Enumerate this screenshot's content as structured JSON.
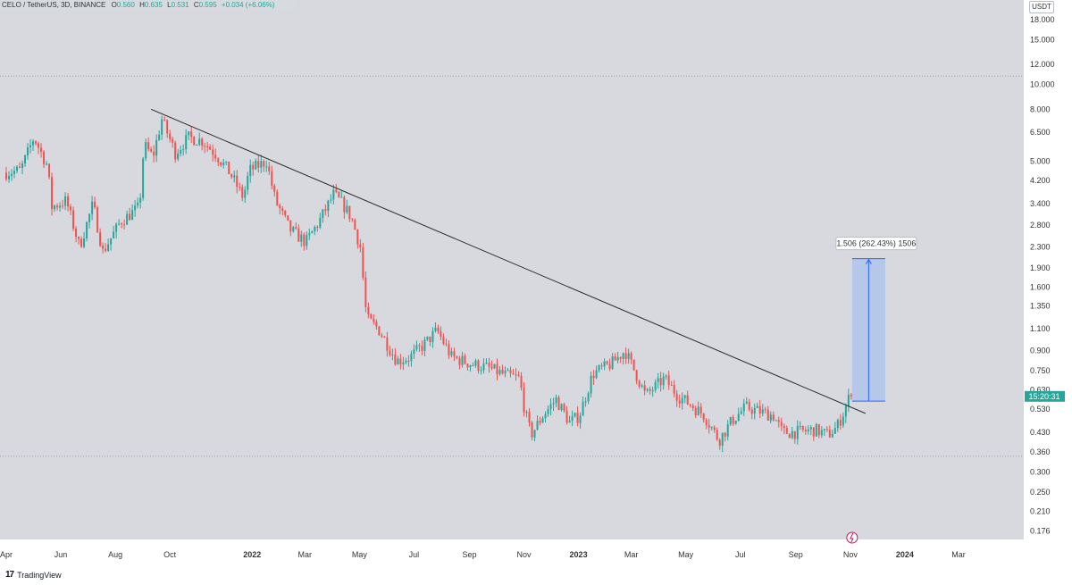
{
  "header": {
    "symbol": "CELO / TetherUS, 3D, BINANCE",
    "o_label": "O",
    "o_value": "0.560",
    "h_label": "H",
    "h_value": "0.635",
    "l_label": "L",
    "l_value": "0.531",
    "c_label": "C",
    "c_value": "0.595",
    "change": "+0.034 (+6.06%)"
  },
  "footer": {
    "logo": "17",
    "brand": "TradingView"
  },
  "colors": {
    "background": "#d7d9df",
    "up": "#26a69a",
    "down": "#ef5350",
    "trendline": "#2b2b2b",
    "measure_fill": "#a9c2ee",
    "measure_border": "#2962ff",
    "price_badge": "#26a69a"
  },
  "chart_data": {
    "type": "candlestick",
    "price_axis": {
      "unit": "USDT",
      "scale": "log",
      "ticks": [
        18.0,
        15.0,
        12.0,
        10.0,
        8.0,
        6.5,
        5.0,
        4.2,
        3.4,
        2.8,
        2.3,
        1.9,
        1.6,
        1.35,
        1.1,
        0.9,
        0.75,
        0.63,
        0.53,
        0.43,
        0.36,
        0.3,
        0.25,
        0.21,
        0.176
      ],
      "tick_labels": [
        "18.000",
        "15.000",
        "12.000",
        "10.000",
        "8.000",
        "6.500",
        "5.000",
        "4.200",
        "3.400",
        "2.800",
        "2.300",
        "1.900",
        "1.600",
        "1.350",
        "1.100",
        "0.900",
        "0.750",
        "0.630",
        "0.530",
        "0.430",
        "0.360",
        "0.300",
        "0.250",
        "0.210",
        "0.176"
      ],
      "range": [
        0.163,
        21.5
      ]
    },
    "time_axis": {
      "labels": [
        "Apr",
        "Jun",
        "Aug",
        "Oct",
        "2022",
        "Mar",
        "May",
        "Jul",
        "Sep",
        "Nov",
        "2023",
        "Mar",
        "May",
        "Jul",
        "Sep",
        "Nov",
        "2024",
        "Mar"
      ],
      "dates": [
        "2021-04-01",
        "2021-06-01",
        "2021-08-01",
        "2021-10-01",
        "2022-01-01",
        "2022-03-01",
        "2022-05-01",
        "2022-07-01",
        "2022-09-01",
        "2022-11-01",
        "2023-01-01",
        "2023-03-01",
        "2023-05-01",
        "2023-07-01",
        "2023-09-01",
        "2023-11-01",
        "2024-01-01",
        "2024-03-01"
      ],
      "range": [
        "2021-04-01",
        "2024-04-15"
      ]
    },
    "path": [
      [
        "2021-04-01",
        4.5
      ],
      [
        "2021-04-20",
        4.6
      ],
      [
        "2021-05-05",
        6.2
      ],
      [
        "2021-05-20",
        4.8
      ],
      [
        "2021-05-25",
        3.3
      ],
      [
        "2021-06-10",
        3.5
      ],
      [
        "2021-06-25",
        2.3
      ],
      [
        "2021-07-10",
        3.4
      ],
      [
        "2021-07-21",
        2.2
      ],
      [
        "2021-08-10",
        2.9
      ],
      [
        "2021-08-31",
        3.3
      ],
      [
        "2021-09-05",
        5.8
      ],
      [
        "2021-09-15",
        5.2
      ],
      [
        "2021-09-25",
        7.3
      ],
      [
        "2021-10-10",
        5.4
      ],
      [
        "2021-10-25",
        6.2
      ],
      [
        "2021-11-10",
        6.0
      ],
      [
        "2021-11-25",
        5.3
      ],
      [
        "2021-12-10",
        4.5
      ],
      [
        "2021-12-25",
        3.6
      ],
      [
        "2022-01-01",
        4.6
      ],
      [
        "2022-01-20",
        5.0
      ],
      [
        "2022-01-30",
        3.5
      ],
      [
        "2022-02-15",
        2.7
      ],
      [
        "2022-03-05",
        2.4
      ],
      [
        "2022-03-20",
        2.9
      ],
      [
        "2022-04-05",
        3.7
      ],
      [
        "2022-04-15",
        3.4
      ],
      [
        "2022-04-25",
        3.0
      ],
      [
        "2022-05-05",
        2.3
      ],
      [
        "2022-05-12",
        1.2
      ],
      [
        "2022-05-25",
        1.1
      ],
      [
        "2022-06-15",
        0.82
      ],
      [
        "2022-06-30",
        0.85
      ],
      [
        "2022-07-15",
        0.95
      ],
      [
        "2022-07-30",
        1.08
      ],
      [
        "2022-08-15",
        0.85
      ],
      [
        "2022-09-05",
        0.8
      ],
      [
        "2022-09-25",
        0.77
      ],
      [
        "2022-10-15",
        0.72
      ],
      [
        "2022-10-30",
        0.7
      ],
      [
        "2022-11-05",
        0.52
      ],
      [
        "2022-11-12",
        0.42
      ],
      [
        "2022-11-25",
        0.5
      ],
      [
        "2022-12-10",
        0.58
      ],
      [
        "2022-12-25",
        0.47
      ],
      [
        "2023-01-05",
        0.5
      ],
      [
        "2023-01-20",
        0.73
      ],
      [
        "2023-02-10",
        0.8
      ],
      [
        "2023-02-25",
        0.9
      ],
      [
        "2023-03-10",
        0.72
      ],
      [
        "2023-03-20",
        0.6
      ],
      [
        "2023-04-10",
        0.7
      ],
      [
        "2023-04-25",
        0.6
      ],
      [
        "2023-05-10",
        0.55
      ],
      [
        "2023-05-25",
        0.5
      ],
      [
        "2023-06-10",
        0.4
      ],
      [
        "2023-06-25",
        0.48
      ],
      [
        "2023-07-10",
        0.54
      ],
      [
        "2023-07-25",
        0.52
      ],
      [
        "2023-08-10",
        0.5
      ],
      [
        "2023-08-20",
        0.43
      ],
      [
        "2023-09-05",
        0.43
      ],
      [
        "2023-09-25",
        0.44
      ],
      [
        "2023-10-10",
        0.42
      ],
      [
        "2023-10-20",
        0.45
      ],
      [
        "2023-10-28",
        0.52
      ],
      [
        "2023-11-03",
        0.595
      ]
    ],
    "trendline": {
      "start": [
        "2021-09-10",
        8.0
      ],
      "end": [
        "2023-11-18",
        0.51
      ]
    },
    "highlighted_lines": [
      10.8,
      0.346
    ],
    "measure_box": {
      "from_date": "2023-11-03",
      "to_date": "2023-12-10",
      "low": 0.57,
      "high": 2.07,
      "label": "1.506 (262.43%) 1506"
    },
    "current_price": {
      "value": 0.595,
      "countdown": "15:20:31"
    }
  }
}
